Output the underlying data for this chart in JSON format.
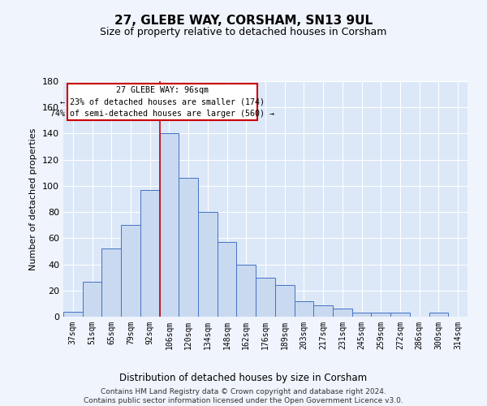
{
  "title1": "27, GLEBE WAY, CORSHAM, SN13 9UL",
  "title2": "Size of property relative to detached houses in Corsham",
  "xlabel": "Distribution of detached houses by size in Corsham",
  "ylabel": "Number of detached properties",
  "footnote": "Contains HM Land Registry data © Crown copyright and database right 2024.\nContains public sector information licensed under the Open Government Licence v3.0.",
  "bar_labels": [
    "37sqm",
    "51sqm",
    "65sqm",
    "79sqm",
    "92sqm",
    "106sqm",
    "120sqm",
    "134sqm",
    "148sqm",
    "162sqm",
    "176sqm",
    "189sqm",
    "203sqm",
    "217sqm",
    "231sqm",
    "245sqm",
    "259sqm",
    "272sqm",
    "286sqm",
    "300sqm",
    "314sqm"
  ],
  "bar_values": [
    4,
    27,
    52,
    70,
    97,
    140,
    106,
    80,
    57,
    40,
    30,
    24,
    12,
    9,
    6,
    3,
    3,
    3,
    0,
    3,
    0
  ],
  "ylim": [
    0,
    180
  ],
  "yticks": [
    0,
    20,
    40,
    60,
    80,
    100,
    120,
    140,
    160,
    180
  ],
  "bar_color": "#c9d9f0",
  "bar_edge_color": "#4472c4",
  "red_line_x": 4.5,
  "annotation_text": "27 GLEBE WAY: 96sqm\n← 23% of detached houses are smaller (174)\n74% of semi-detached houses are larger (560) →",
  "annotation_box_color": "#ffffff",
  "annotation_box_edge": "#cc0000",
  "fig_bg_color": "#f0f4fc",
  "plot_bg_color": "#dce8f8",
  "grid_color": "#ffffff",
  "red_line_color": "#cc0000"
}
